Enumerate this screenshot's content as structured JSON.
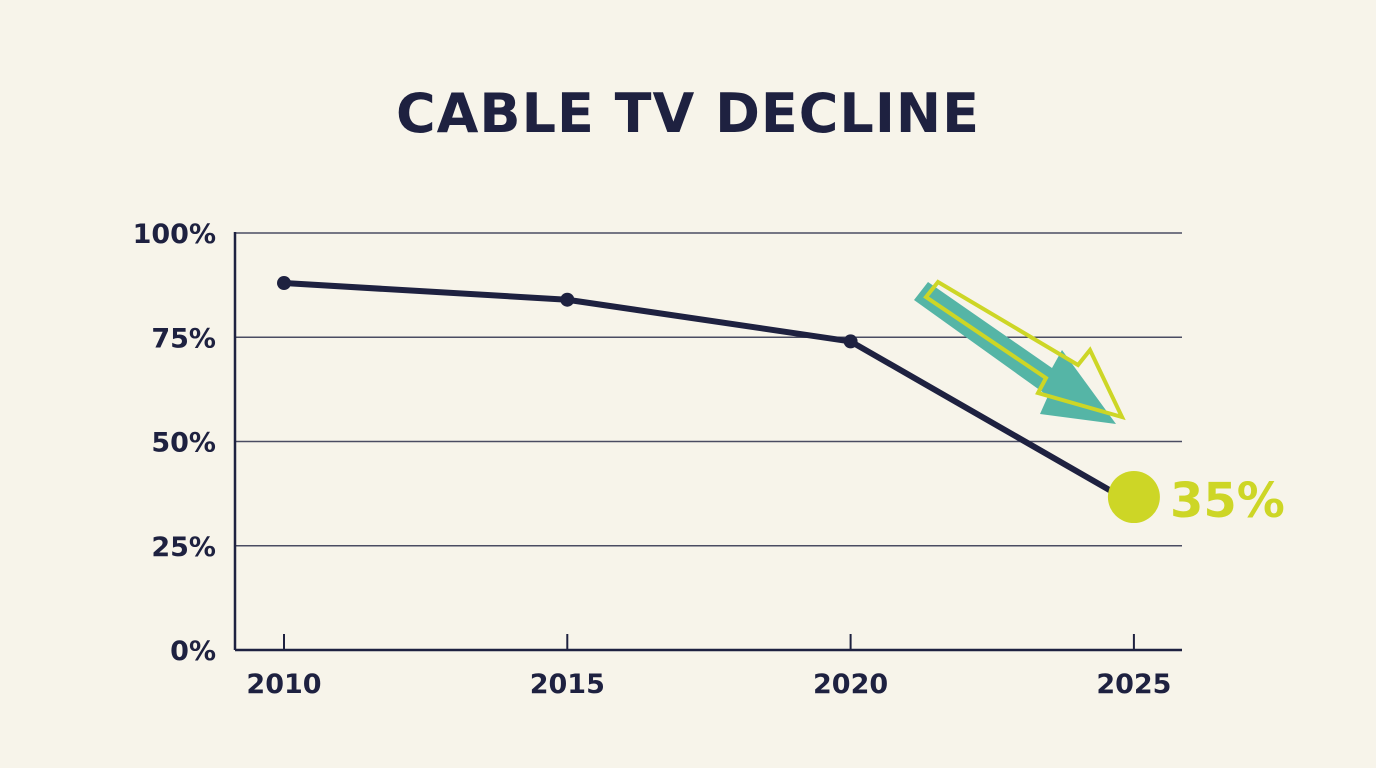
{
  "chart_data": {
    "type": "line",
    "title": "CABLE TV DECLINE",
    "xlabel": "",
    "ylabel": "",
    "categories": [
      "2010",
      "2015",
      "2020",
      "2025"
    ],
    "values": [
      88,
      84,
      74,
      35
    ],
    "ylim": [
      0,
      100
    ],
    "yticks": [
      "0%",
      "25%",
      "50%",
      "75%",
      "100%"
    ],
    "ytick_values": [
      0,
      25,
      50,
      75,
      100
    ],
    "grid": true,
    "annotation": {
      "label": "35%",
      "point": "2025",
      "arrow": "down-right"
    },
    "colors": {
      "line": "#1e2140",
      "highlight": "#cdd626",
      "arrow": "#55b5a6",
      "grid": "#4a4c62",
      "background": "#f7f4ea"
    }
  }
}
